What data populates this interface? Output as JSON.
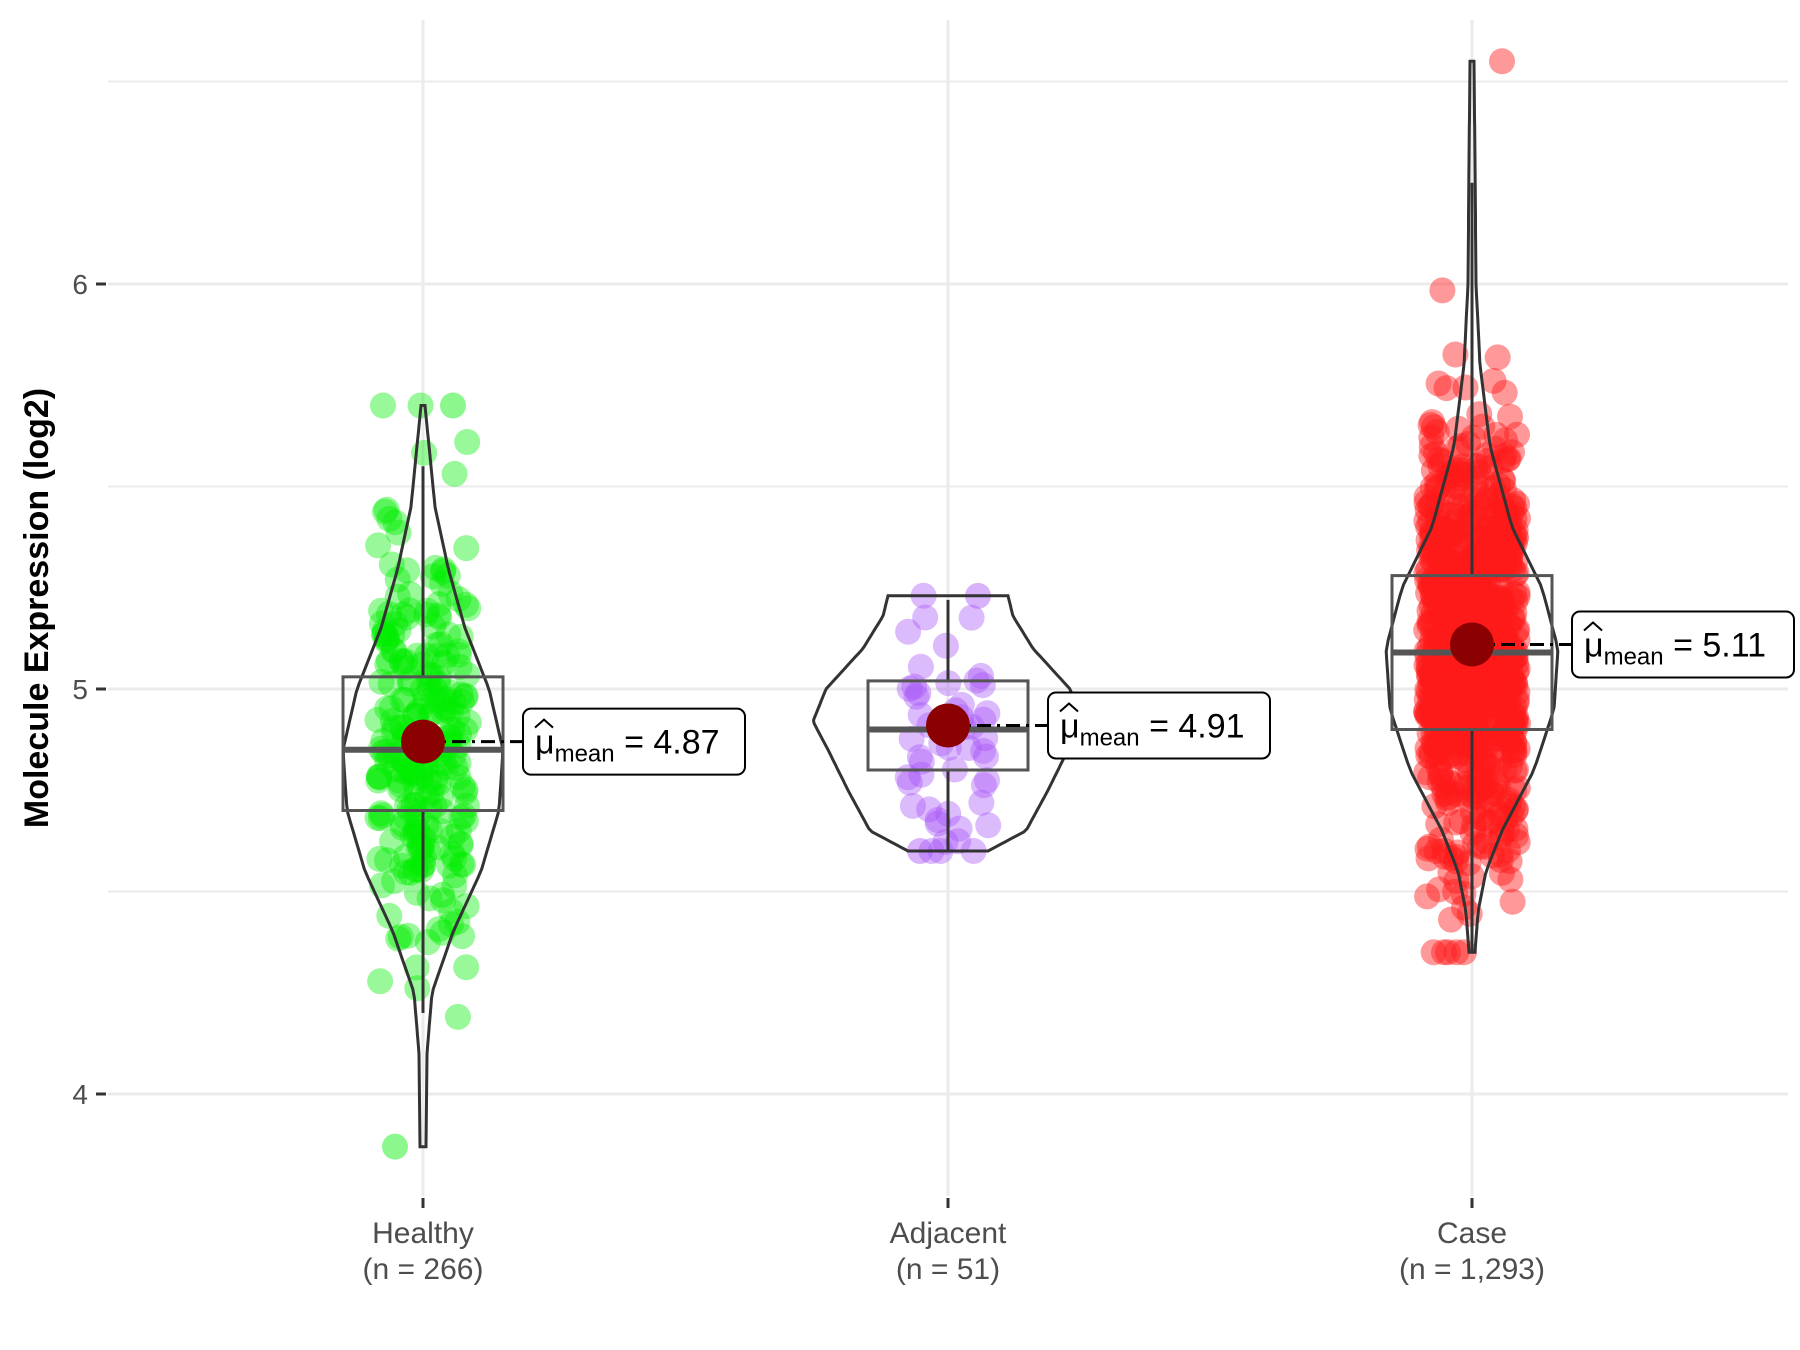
{
  "chart_data": {
    "type": "violin",
    "title": "",
    "ylabel": "Molecule Expression (log2)",
    "xlabel": "",
    "ylim": [
      3.7,
      6.65
    ],
    "yticks": [
      4,
      5,
      6
    ],
    "ytick_labels": [
      "4",
      "5",
      "6"
    ],
    "grid": true,
    "mean_label_prefix": "μ",
    "mean_label_subscript": "mean",
    "mean_label_equals": "=",
    "groups": [
      {
        "name": "Healthy",
        "n_label": "(n = 266)",
        "n": 266,
        "color": "#00ee00",
        "mean": 4.87,
        "mean_label": "4.87",
        "median": 4.85,
        "q1": 4.7,
        "q3": 5.03,
        "whisker_low": 4.2,
        "whisker_high": 5.55,
        "min": 3.87,
        "max": 5.7
      },
      {
        "name": "Adjacent",
        "n_label": "(n = 51)",
        "n": 51,
        "color": "#a855f7",
        "mean": 4.91,
        "mean_label": "4.91",
        "median": 4.9,
        "q1": 4.8,
        "q3": 5.02,
        "whisker_low": 4.6,
        "whisker_high": 5.22,
        "min": 4.6,
        "max": 5.23
      },
      {
        "name": "Case",
        "n_label": "(n = 1,293)",
        "n": 1293,
        "color": "#ff1a1a",
        "mean": 5.11,
        "mean_label": "5.11",
        "median": 5.09,
        "q1": 4.9,
        "q3": 5.28,
        "whisker_low": 4.35,
        "whisker_high": 6.25,
        "min": 4.35,
        "max": 6.55
      }
    ]
  }
}
